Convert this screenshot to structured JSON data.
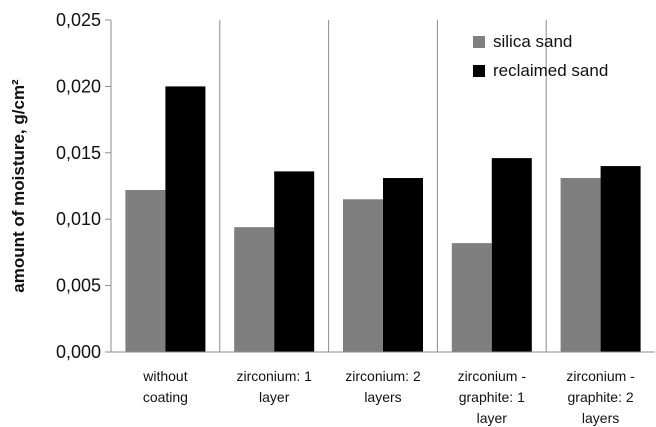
{
  "chart_data": {
    "type": "bar",
    "title": "",
    "xlabel": "",
    "ylabel": "amount of moisture, g/cm²",
    "ylim": [
      0,
      0.025
    ],
    "yticks": [
      "0,000",
      "0,005",
      "0,010",
      "0,015",
      "0,020",
      "0,025"
    ],
    "ytick_values": [
      0,
      0.005,
      0.01,
      0.015,
      0.02,
      0.025
    ],
    "grid": "vertical separators between categories",
    "legend_position": "top-right",
    "categories": [
      [
        "without",
        "coating"
      ],
      [
        "zirconium: 1",
        "layer"
      ],
      [
        "zirconium: 2",
        "layers"
      ],
      [
        "zirconium -",
        "graphite: 1",
        "layer"
      ],
      [
        "zirconium -",
        "graphite: 2",
        "layers"
      ]
    ],
    "series": [
      {
        "name": "silica sand",
        "color": "#7f7f7f",
        "values": [
          0.0122,
          0.0094,
          0.0115,
          0.0082,
          0.0131
        ]
      },
      {
        "name": "reclaimed sand",
        "color": "#000000",
        "values": [
          0.02,
          0.0136,
          0.0131,
          0.0146,
          0.014
        ]
      }
    ]
  }
}
